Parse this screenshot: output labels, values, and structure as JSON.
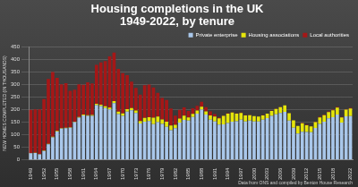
{
  "chart_data": {
    "type": "bar",
    "title": [
      "Housing completions in the UK",
      "1949-2022, by tenure"
    ],
    "y_label": "NEW HOMES COMPLETED (IN THOUSANDS)",
    "annotations": [
      "Data from ONS and compiled by Benton House Research"
    ],
    "stacked": true,
    "grid": true,
    "legend": "top-right",
    "categories": [
      "1949",
      null,
      null,
      "1952",
      null,
      null,
      "1955",
      null,
      null,
      "1958",
      null,
      null,
      "1961",
      null,
      null,
      "1964",
      null,
      null,
      "1967",
      null,
      null,
      "1970",
      null,
      null,
      "1973",
      null,
      null,
      "1976",
      null,
      null,
      "1979",
      null,
      null,
      "1982",
      null,
      null,
      "1985",
      null,
      null,
      "1988",
      null,
      null,
      "1991",
      null,
      null,
      "1994",
      null,
      null,
      "1997",
      null,
      null,
      "2000",
      null,
      null,
      "2003",
      null,
      null,
      "2006",
      null,
      null,
      "2009",
      null,
      null,
      "2012",
      null,
      null,
      "2015",
      null,
      null,
      "2018",
      null,
      null,
      null,
      "2022"
    ],
    "series": [
      {
        "name": "Private enterprise",
        "color": "#a9c7ea",
        "values": [
          26,
          27,
          22,
          35,
          62,
          90,
          113,
          124,
          126,
          128,
          150,
          168,
          177,
          175,
          175,
          218,
          214,
          206,
          201,
          226,
          182,
          175,
          192,
          197,
          187,
          145,
          152,
          155,
          142,
          150,
          143,
          131,
          118,
          126,
          148,
          159,
          156,
          171,
          184,
          200,
          180,
          160,
          153,
          140,
          141,
          147,
          152,
          154,
          160,
          153,
          156,
          153,
          153,
          160,
          166,
          175,
          181,
          187,
          191,
          156,
          128,
          105,
          112,
          111,
          110,
          127,
          143,
          152,
          165,
          170,
          180,
          148,
          173,
          174
        ]
      },
      {
        "name": "Housing associations",
        "color": "#e6e60a",
        "values": [
          1,
          1,
          1,
          2,
          2,
          2,
          2,
          2,
          2,
          2,
          2,
          3,
          3,
          3,
          4,
          5,
          6,
          7,
          7,
          8,
          10,
          10,
          10,
          9,
          9,
          10,
          15,
          15,
          26,
          22,
          18,
          21,
          19,
          13,
          16,
          17,
          13,
          12,
          12,
          12,
          13,
          17,
          19,
          25,
          34,
          37,
          36,
          30,
          27,
          24,
          22,
          21,
          19,
          17,
          18,
          20,
          22,
          23,
          26,
          30,
          29,
          30,
          34,
          27,
          23,
          23,
          26,
          26,
          25,
          27,
          28,
          21,
          27,
          30
        ]
      },
      {
        "name": "Local authorities",
        "color": "#a51717",
        "values": [
          172,
          173,
          178,
          205,
          258,
          258,
          211,
          175,
          177,
          145,
          127,
          130,
          119,
          131,
          125,
          155,
          168,
          180,
          204,
          193,
          170,
          160,
          135,
          105,
          90,
          105,
          130,
          130,
          120,
          95,
          85,
          86,
          67,
          37,
          35,
          33,
          26,
          22,
          19,
          19,
          17,
          16,
          10,
          4,
          2,
          2,
          1,
          1,
          1,
          0.4,
          0.3,
          0.3,
          0.3,
          0.3,
          0.2,
          0.2,
          0.3,
          0.3,
          0.3,
          0.5,
          0.5,
          0.3,
          1.5,
          1.5,
          1.5,
          2,
          2.5,
          2,
          2.5,
          3,
          3,
          2,
          2,
          3
        ]
      }
    ],
    "ylim": [
      0,
      450
    ],
    "yticks": [
      0,
      50,
      100,
      150,
      200,
      250,
      300,
      350,
      400,
      450
    ]
  }
}
